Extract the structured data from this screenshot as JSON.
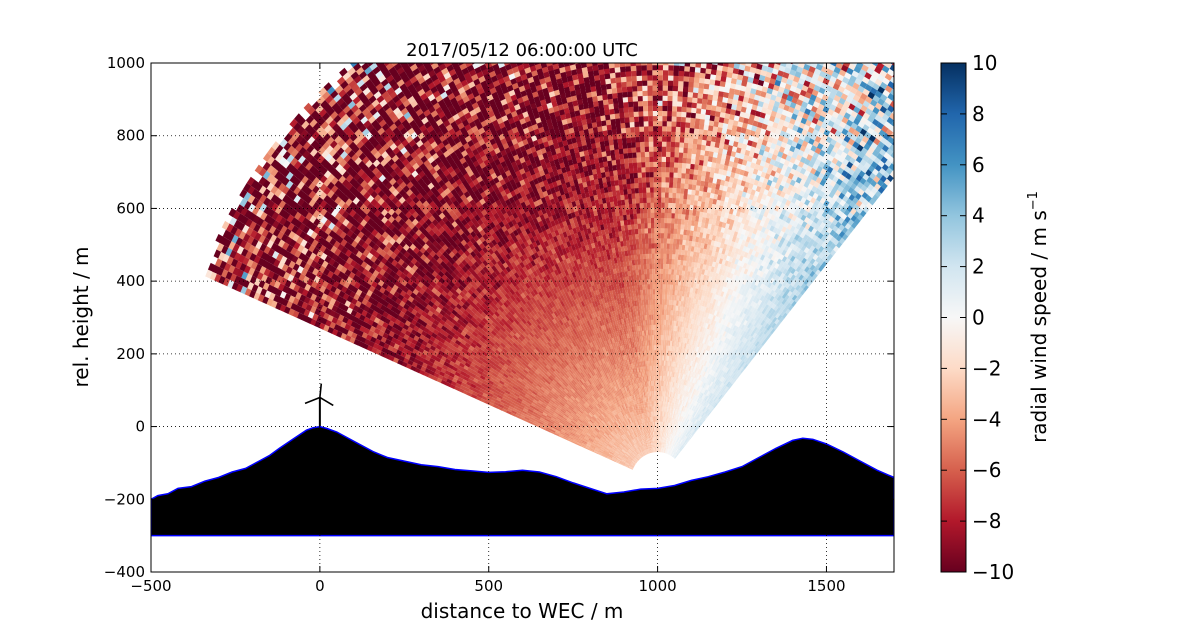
{
  "chart_data": {
    "type": "heatmap",
    "title": "2017/05/12 06:00:00 UTC",
    "xlabel": "distance to WEC / m",
    "ylabel": "rel. height / m",
    "xlim": [
      -500,
      1700
    ],
    "ylim": [
      -400,
      1000
    ],
    "xticks": [
      -500,
      0,
      500,
      1000,
      1500
    ],
    "yticks": [
      -400,
      -200,
      0,
      200,
      400,
      600,
      800,
      1000
    ],
    "grid": true,
    "colorbar": {
      "label": "radial wind speed / m s",
      "label_superscript": "−1",
      "range": [
        -10,
        10
      ],
      "ticks": [
        -10,
        -8,
        -6,
        -4,
        -2,
        0,
        2,
        4,
        6,
        8,
        10
      ],
      "colors": [
        "#67001f",
        "#b2182b",
        "#d6604d",
        "#f4a582",
        "#fddbc7",
        "#f7f7f7",
        "#d1e5f0",
        "#92c5de",
        "#4393c3",
        "#2166ac",
        "#053061"
      ]
    },
    "scan": {
      "origin": [
        1000,
        -150
      ],
      "range_max": 1450,
      "range_min": 80,
      "elevation_deg": [
        50,
        157
      ],
      "near_wake_speed": -9,
      "far_east_speed": 4
    },
    "wind_turbine": {
      "x": 0,
      "y": 0,
      "hub_height": 80,
      "rotor_radius": 45
    },
    "terrain": {
      "fill": "#000000",
      "edge": "#0000ff",
      "base": -300,
      "profile_x": [
        -500,
        -480,
        -450,
        -420,
        -380,
        -340,
        -300,
        -260,
        -220,
        -180,
        -150,
        -120,
        -80,
        -40,
        -20,
        0,
        20,
        50,
        80,
        120,
        160,
        200,
        250,
        300,
        350,
        400,
        450,
        500,
        550,
        600,
        650,
        700,
        750,
        800,
        850,
        900,
        950,
        1000,
        1050,
        1100,
        1150,
        1200,
        1250,
        1300,
        1350,
        1400,
        1430,
        1460,
        1500,
        1550,
        1600,
        1650,
        1700
      ],
      "profile_y": [
        -200,
        -190,
        -185,
        -170,
        -165,
        -150,
        -140,
        -125,
        -115,
        -95,
        -80,
        -60,
        -35,
        -10,
        -3,
        0,
        -5,
        -15,
        -30,
        -50,
        -70,
        -85,
        -95,
        -105,
        -110,
        -118,
        -122,
        -126,
        -124,
        -120,
        -125,
        -138,
        -155,
        -170,
        -185,
        -180,
        -172,
        -170,
        -162,
        -148,
        -138,
        -125,
        -110,
        -85,
        -60,
        -38,
        -32,
        -35,
        -48,
        -70,
        -95,
        -120,
        -140
      ]
    }
  }
}
